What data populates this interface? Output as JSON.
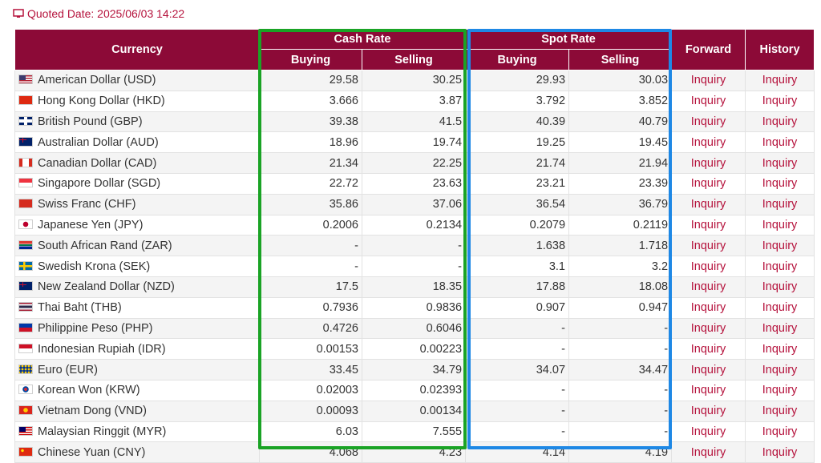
{
  "quoted": {
    "label": "Quoted Date: 2025/06/03 14:22",
    "icon": "monitor-icon"
  },
  "headers": {
    "currency": "Currency",
    "cash_rate": "Cash Rate",
    "spot_rate": "Spot Rate",
    "forward": "Forward",
    "history": "History",
    "buying": "Buying",
    "selling": "Selling"
  },
  "colors": {
    "header_bg": "#8c0a37",
    "accent": "#b5123c",
    "cash_highlight": "#1aa325",
    "spot_highlight": "#1e88e5"
  },
  "rows": [
    {
      "flag": "us-flag-icon",
      "name": "American Dollar (USD)",
      "cash_buy": "29.58",
      "cash_sell": "30.25",
      "spot_buy": "29.93",
      "spot_sell": "30.03",
      "forward": "Inquiry",
      "history": "Inquiry"
    },
    {
      "flag": "hk-flag-icon",
      "name": "Hong Kong Dollar (HKD)",
      "cash_buy": "3.666",
      "cash_sell": "3.87",
      "spot_buy": "3.792",
      "spot_sell": "3.852",
      "forward": "Inquiry",
      "history": "Inquiry"
    },
    {
      "flag": "gb-flag-icon",
      "name": "British Pound (GBP)",
      "cash_buy": "39.38",
      "cash_sell": "41.5",
      "spot_buy": "40.39",
      "spot_sell": "40.79",
      "forward": "Inquiry",
      "history": "Inquiry"
    },
    {
      "flag": "au-flag-icon",
      "name": "Australian Dollar (AUD)",
      "cash_buy": "18.96",
      "cash_sell": "19.74",
      "spot_buy": "19.25",
      "spot_sell": "19.45",
      "forward": "Inquiry",
      "history": "Inquiry"
    },
    {
      "flag": "ca-flag-icon",
      "name": "Canadian Dollar (CAD)",
      "cash_buy": "21.34",
      "cash_sell": "22.25",
      "spot_buy": "21.74",
      "spot_sell": "21.94",
      "forward": "Inquiry",
      "history": "Inquiry"
    },
    {
      "flag": "sg-flag-icon",
      "name": "Singapore Dollar (SGD)",
      "cash_buy": "22.72",
      "cash_sell": "23.63",
      "spot_buy": "23.21",
      "spot_sell": "23.39",
      "forward": "Inquiry",
      "history": "Inquiry"
    },
    {
      "flag": "ch-flag-icon",
      "name": "Swiss Franc (CHF)",
      "cash_buy": "35.86",
      "cash_sell": "37.06",
      "spot_buy": "36.54",
      "spot_sell": "36.79",
      "forward": "Inquiry",
      "history": "Inquiry"
    },
    {
      "flag": "jp-flag-icon",
      "name": "Japanese Yen (JPY)",
      "cash_buy": "0.2006",
      "cash_sell": "0.2134",
      "spot_buy": "0.2079",
      "spot_sell": "0.2119",
      "forward": "Inquiry",
      "history": "Inquiry"
    },
    {
      "flag": "za-flag-icon",
      "name": "South African Rand (ZAR)",
      "cash_buy": "-",
      "cash_sell": "-",
      "spot_buy": "1.638",
      "spot_sell": "1.718",
      "forward": "Inquiry",
      "history": "Inquiry"
    },
    {
      "flag": "se-flag-icon",
      "name": "Swedish Krona (SEK)",
      "cash_buy": "-",
      "cash_sell": "-",
      "spot_buy": "3.1",
      "spot_sell": "3.2",
      "forward": "Inquiry",
      "history": "Inquiry"
    },
    {
      "flag": "nz-flag-icon",
      "name": "New Zealand Dollar (NZD)",
      "cash_buy": "17.5",
      "cash_sell": "18.35",
      "spot_buy": "17.88",
      "spot_sell": "18.08",
      "forward": "Inquiry",
      "history": "Inquiry"
    },
    {
      "flag": "th-flag-icon",
      "name": "Thai Baht (THB)",
      "cash_buy": "0.7936",
      "cash_sell": "0.9836",
      "spot_buy": "0.907",
      "spot_sell": "0.947",
      "forward": "Inquiry",
      "history": "Inquiry"
    },
    {
      "flag": "ph-flag-icon",
      "name": "Philippine Peso (PHP)",
      "cash_buy": "0.4726",
      "cash_sell": "0.6046",
      "spot_buy": "-",
      "spot_sell": "-",
      "forward": "Inquiry",
      "history": "Inquiry"
    },
    {
      "flag": "id-flag-icon",
      "name": "Indonesian Rupiah (IDR)",
      "cash_buy": "0.00153",
      "cash_sell": "0.00223",
      "spot_buy": "-",
      "spot_sell": "-",
      "forward": "Inquiry",
      "history": "Inquiry"
    },
    {
      "flag": "eu-flag-icon",
      "name": "Euro (EUR)",
      "cash_buy": "33.45",
      "cash_sell": "34.79",
      "spot_buy": "34.07",
      "spot_sell": "34.47",
      "forward": "Inquiry",
      "history": "Inquiry"
    },
    {
      "flag": "kr-flag-icon",
      "name": "Korean Won (KRW)",
      "cash_buy": "0.02003",
      "cash_sell": "0.02393",
      "spot_buy": "-",
      "spot_sell": "-",
      "forward": "Inquiry",
      "history": "Inquiry"
    },
    {
      "flag": "vn-flag-icon",
      "name": "Vietnam Dong (VND)",
      "cash_buy": "0.00093",
      "cash_sell": "0.00134",
      "spot_buy": "-",
      "spot_sell": "-",
      "forward": "Inquiry",
      "history": "Inquiry"
    },
    {
      "flag": "my-flag-icon",
      "name": "Malaysian Ringgit (MYR)",
      "cash_buy": "6.03",
      "cash_sell": "7.555",
      "spot_buy": "-",
      "spot_sell": "-",
      "forward": "Inquiry",
      "history": "Inquiry"
    },
    {
      "flag": "cn-flag-icon",
      "name": "Chinese Yuan (CNY)",
      "cash_buy": "4.068",
      "cash_sell": "4.23",
      "spot_buy": "4.14",
      "spot_sell": "4.19",
      "forward": "Inquiry",
      "history": "Inquiry"
    }
  ]
}
